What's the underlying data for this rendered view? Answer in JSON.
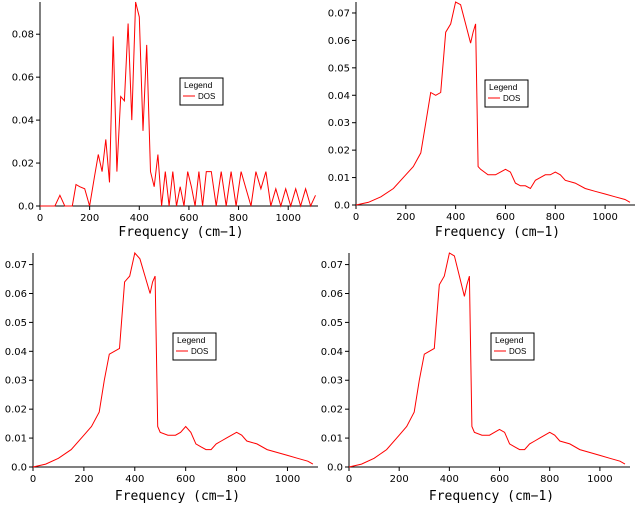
{
  "chart_data": [
    {
      "type": "line",
      "title": "",
      "xlabel": "Frequency (cm−1)",
      "ylabel": "",
      "xlim": [
        0,
        1120
      ],
      "ylim": [
        0,
        0.095
      ],
      "xticks": [
        "0",
        "200",
        "400",
        "600",
        "800",
        "1000"
      ],
      "yticks": [
        "0.0",
        "0.02",
        "0.04",
        "0.06",
        "0.08"
      ],
      "legend_title": "Legend",
      "series": [
        {
          "name": "DOS",
          "color": "#ff0000",
          "x": [
            0,
            60,
            80,
            100,
            130,
            145,
            160,
            180,
            200,
            220,
            235,
            250,
            265,
            280,
            295,
            310,
            325,
            340,
            355,
            370,
            385,
            400,
            415,
            430,
            445,
            460,
            475,
            490,
            505,
            520,
            535,
            550,
            565,
            580,
            595,
            610,
            625,
            640,
            655,
            670,
            690,
            710,
            730,
            750,
            770,
            790,
            810,
            830,
            850,
            870,
            890,
            910,
            930,
            950,
            970,
            990,
            1010,
            1030,
            1050,
            1070,
            1090,
            1110
          ],
          "values": [
            0,
            0,
            0.005,
            0,
            0,
            0.01,
            0.009,
            0.008,
            0,
            0.014,
            0.024,
            0.016,
            0.031,
            0.011,
            0.079,
            0.016,
            0.051,
            0.049,
            0.085,
            0.04,
            0.095,
            0.088,
            0.035,
            0.075,
            0.016,
            0.009,
            0.024,
            0,
            0.016,
            0,
            0.016,
            0,
            0.009,
            0,
            0.016,
            0.009,
            0,
            0.016,
            0,
            0.016,
            0.016,
            0,
            0.016,
            0,
            0.016,
            0,
            0.016,
            0.008,
            0,
            0.016,
            0.008,
            0.016,
            0,
            0.008,
            0,
            0.008,
            0,
            0.008,
            0,
            0.008,
            0,
            0.005
          ]
        }
      ]
    },
    {
      "type": "line",
      "title": "",
      "xlabel": "Frequency (cm−1)",
      "ylabel": "",
      "xlim": [
        0,
        1120
      ],
      "ylim": [
        0,
        0.074
      ],
      "xticks": [
        "0",
        "200",
        "400",
        "600",
        "800",
        "1000"
      ],
      "yticks": [
        "0.0",
        "0.01",
        "0.02",
        "0.03",
        "0.04",
        "0.05",
        "0.06",
        "0.07"
      ],
      "legend_title": "Legend",
      "series": [
        {
          "name": "DOS",
          "color": "#ff0000",
          "x": [
            0,
            50,
            100,
            150,
            200,
            230,
            260,
            280,
            300,
            320,
            340,
            360,
            380,
            400,
            420,
            440,
            460,
            470,
            480,
            490,
            500,
            530,
            560,
            580,
            600,
            620,
            640,
            660,
            680,
            700,
            720,
            740,
            760,
            780,
            800,
            820,
            840,
            880,
            920,
            960,
            1000,
            1040,
            1080,
            1100
          ],
          "values": [
            0,
            0.001,
            0.003,
            0.006,
            0.011,
            0.014,
            0.019,
            0.03,
            0.041,
            0.04,
            0.041,
            0.063,
            0.066,
            0.074,
            0.073,
            0.066,
            0.059,
            0.063,
            0.066,
            0.014,
            0.013,
            0.011,
            0.011,
            0.012,
            0.013,
            0.012,
            0.008,
            0.007,
            0.007,
            0.006,
            0.009,
            0.01,
            0.011,
            0.011,
            0.012,
            0.011,
            0.009,
            0.008,
            0.006,
            0.005,
            0.004,
            0.003,
            0.002,
            0.001
          ]
        }
      ]
    },
    {
      "type": "line",
      "title": "",
      "xlabel": "Frequency (cm−1)",
      "ylabel": "",
      "xlim": [
        0,
        1120
      ],
      "ylim": [
        0,
        0.074
      ],
      "xticks": [
        "0",
        "200",
        "400",
        "600",
        "800",
        "1000"
      ],
      "yticks": [
        "0.0",
        "0.01",
        "0.02",
        "0.03",
        "0.04",
        "0.05",
        "0.06",
        "0.07"
      ],
      "legend_title": "Legend",
      "series": [
        {
          "name": "DOS",
          "color": "#ff0000",
          "x": [
            0,
            50,
            100,
            150,
            200,
            230,
            260,
            280,
            300,
            320,
            340,
            360,
            380,
            400,
            420,
            440,
            460,
            470,
            480,
            490,
            500,
            530,
            560,
            580,
            600,
            620,
            640,
            660,
            680,
            700,
            720,
            740,
            760,
            780,
            800,
            820,
            840,
            880,
            920,
            960,
            1000,
            1040,
            1080,
            1100
          ],
          "values": [
            0,
            0.001,
            0.003,
            0.006,
            0.011,
            0.014,
            0.019,
            0.03,
            0.039,
            0.04,
            0.041,
            0.064,
            0.066,
            0.074,
            0.072,
            0.066,
            0.06,
            0.064,
            0.066,
            0.014,
            0.012,
            0.011,
            0.011,
            0.012,
            0.014,
            0.012,
            0.008,
            0.007,
            0.006,
            0.006,
            0.008,
            0.009,
            0.01,
            0.011,
            0.012,
            0.011,
            0.009,
            0.008,
            0.006,
            0.005,
            0.004,
            0.003,
            0.002,
            0.001
          ]
        }
      ]
    },
    {
      "type": "line",
      "title": "",
      "xlabel": "Frequency (cm−1)",
      "ylabel": "",
      "xlim": [
        0,
        1120
      ],
      "ylim": [
        0,
        0.074
      ],
      "xticks": [
        "0",
        "200",
        "400",
        "600",
        "800",
        "1000"
      ],
      "yticks": [
        "0.0",
        "0.01",
        "0.02",
        "0.03",
        "0.04",
        "0.05",
        "0.06",
        "0.07"
      ],
      "legend_title": "Legend",
      "series": [
        {
          "name": "DOS",
          "color": "#ff0000",
          "x": [
            0,
            50,
            100,
            150,
            200,
            230,
            260,
            280,
            300,
            320,
            340,
            360,
            380,
            400,
            420,
            440,
            460,
            470,
            480,
            490,
            500,
            530,
            560,
            580,
            600,
            620,
            640,
            660,
            680,
            700,
            720,
            740,
            760,
            780,
            800,
            820,
            840,
            880,
            920,
            960,
            1000,
            1040,
            1080,
            1100
          ],
          "values": [
            0,
            0.001,
            0.003,
            0.006,
            0.011,
            0.014,
            0.019,
            0.03,
            0.039,
            0.04,
            0.041,
            0.063,
            0.066,
            0.074,
            0.073,
            0.066,
            0.059,
            0.063,
            0.066,
            0.014,
            0.012,
            0.011,
            0.011,
            0.012,
            0.013,
            0.012,
            0.008,
            0.007,
            0.006,
            0.006,
            0.008,
            0.009,
            0.01,
            0.011,
            0.012,
            0.011,
            0.009,
            0.008,
            0.006,
            0.005,
            0.004,
            0.003,
            0.002,
            0.001
          ]
        }
      ]
    }
  ]
}
